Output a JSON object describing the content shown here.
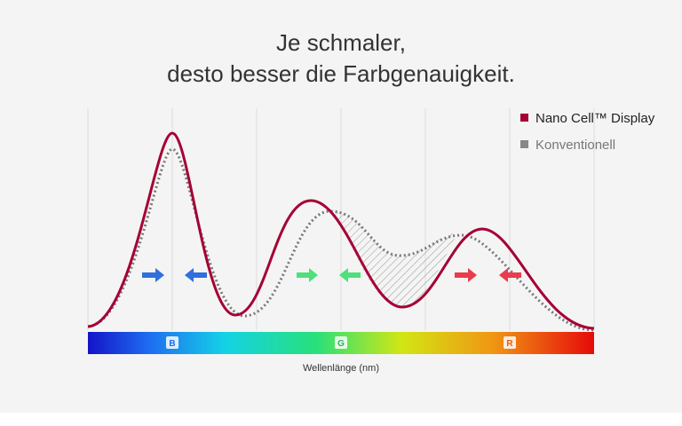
{
  "title": [
    "Je schmaler,",
    "desto besser die Farbgenauigkeit."
  ],
  "legend": [
    "Nano Cell™ Display",
    "Konventionell"
  ],
  "bands": [
    "B",
    "G",
    "R"
  ],
  "x_label": "Wellenlänge (nm)"
}
